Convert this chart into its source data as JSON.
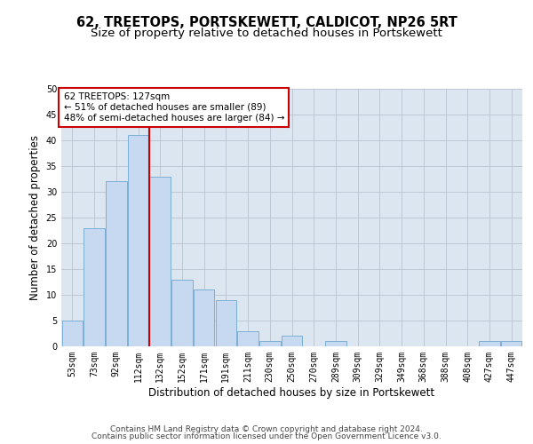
{
  "title": "62, TREETOPS, PORTSKEWETT, CALDICOT, NP26 5RT",
  "subtitle": "Size of property relative to detached houses in Portskewett",
  "xlabel": "Distribution of detached houses by size in Portskewett",
  "ylabel": "Number of detached properties",
  "categories": [
    "53sqm",
    "73sqm",
    "92sqm",
    "112sqm",
    "132sqm",
    "152sqm",
    "171sqm",
    "191sqm",
    "211sqm",
    "230sqm",
    "250sqm",
    "270sqm",
    "289sqm",
    "309sqm",
    "329sqm",
    "349sqm",
    "368sqm",
    "388sqm",
    "408sqm",
    "427sqm",
    "447sqm"
  ],
  "values": [
    5,
    23,
    32,
    41,
    33,
    13,
    11,
    9,
    3,
    1,
    2,
    0,
    1,
    0,
    0,
    0,
    0,
    0,
    0,
    1,
    1
  ],
  "bar_color": "#c6d9f0",
  "bar_edge_color": "#7bafd4",
  "vline_color": "#cc0000",
  "annotation_text": "62 TREETOPS: 127sqm\n← 51% of detached houses are smaller (89)\n48% of semi-detached houses are larger (84) →",
  "annotation_box_color": "#ffffff",
  "annotation_box_edge_color": "#cc0000",
  "ylim": [
    0,
    50
  ],
  "yticks": [
    0,
    5,
    10,
    15,
    20,
    25,
    30,
    35,
    40,
    45,
    50
  ],
  "grid_color": "#c0c8d8",
  "plot_bg_color": "#dce6f1",
  "footer_line1": "Contains HM Land Registry data © Crown copyright and database right 2024.",
  "footer_line2": "Contains public sector information licensed under the Open Government Licence v3.0.",
  "title_fontsize": 10.5,
  "subtitle_fontsize": 9.5,
  "axis_label_fontsize": 8.5,
  "tick_fontsize": 7,
  "annotation_fontsize": 7.5,
  "footer_fontsize": 6.5
}
